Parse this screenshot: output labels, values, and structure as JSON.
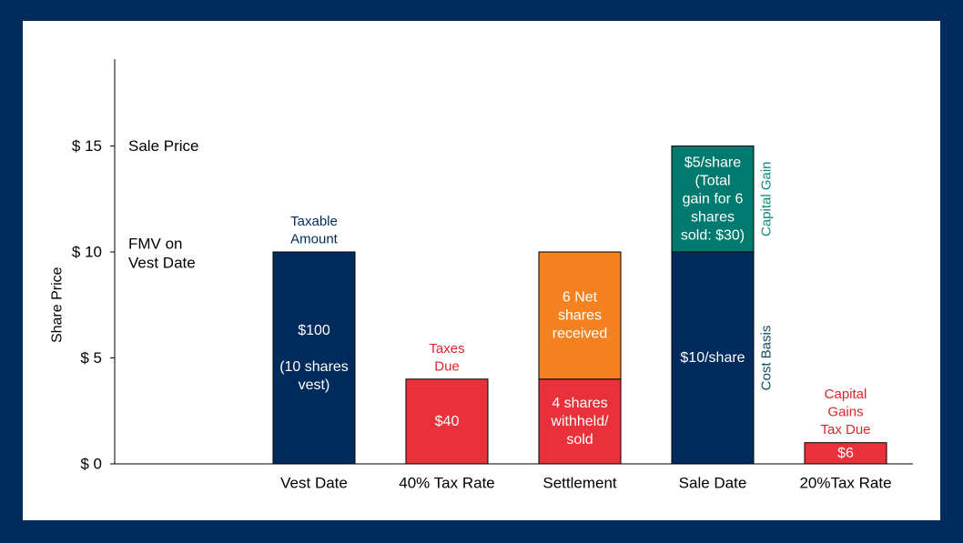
{
  "chart_data": {
    "type": "bar",
    "xlabel": "",
    "ylabel": "Share Price",
    "ylim": [
      0,
      19
    ],
    "yticks": [
      {
        "value": 0,
        "label": "$ 0"
      },
      {
        "value": 5,
        "label": "$ 5"
      },
      {
        "value": 10,
        "label": "$ 10"
      },
      {
        "value": 15,
        "label": "$ 15"
      }
    ],
    "reference_labels": [
      {
        "value": 15,
        "lines": [
          "Sale Price"
        ]
      },
      {
        "value": 10,
        "lines": [
          "FMV on",
          "Vest Date"
        ]
      }
    ],
    "categories": [
      "Vest Date",
      "40% Tax Rate",
      "Settlement",
      "Sale Date",
      "20%Tax Rate"
    ],
    "bars": [
      {
        "category": "Vest Date",
        "above_label": [
          "Taxable",
          "Amount"
        ],
        "above_color": "#002b5c",
        "segments": [
          {
            "from": 0,
            "to": 10,
            "color": "#002b5c",
            "lines": [
              "$100",
              "",
              "(10 shares",
              "vest)"
            ]
          }
        ]
      },
      {
        "category": "40% Tax Rate",
        "above_label": [
          "Taxes",
          "Due"
        ],
        "above_color": "#d9262a",
        "segments": [
          {
            "from": 0,
            "to": 4,
            "color": "#e8313a",
            "lines": [
              "$40"
            ]
          }
        ]
      },
      {
        "category": "Settlement",
        "segments": [
          {
            "from": 0,
            "to": 4,
            "color": "#e8313a",
            "lines": [
              "4 shares",
              "withheld/",
              "sold"
            ]
          },
          {
            "from": 4,
            "to": 10,
            "color": "#f58220",
            "lines": [
              "6 Net",
              "shares",
              "received"
            ]
          }
        ]
      },
      {
        "category": "Sale Date",
        "segments": [
          {
            "from": 0,
            "to": 10,
            "color": "#002b5c",
            "lines": [
              "$10/share"
            ],
            "side_label": "Cost Basis",
            "side_color": "#0f4c5c"
          },
          {
            "from": 10,
            "to": 15,
            "color": "#007a6e",
            "lines": [
              "$5/share",
              "(Total",
              "gain for 6",
              "shares",
              "sold: $30)"
            ],
            "side_label": "Capital Gain",
            "side_color": "#0a8a7a"
          }
        ]
      },
      {
        "category": "20%Tax Rate",
        "above_label": [
          "Capital",
          "Gains",
          "Tax Due"
        ],
        "above_color": "#d9262a",
        "segments": [
          {
            "from": 0,
            "to": 1,
            "color": "#e8313a",
            "lines": [
              "$6"
            ]
          }
        ]
      }
    ]
  }
}
